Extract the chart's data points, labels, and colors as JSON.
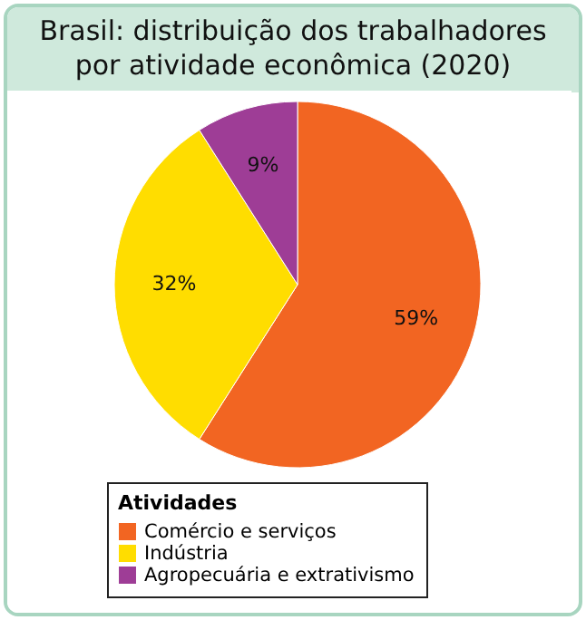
{
  "chart_data": {
    "type": "pie",
    "title": "Brasil: distribuição dos trabalhadores por atividade econômica (2020)",
    "legend_title": "Atividades",
    "legend": "bottom",
    "categories": [
      "Comércio e serviços",
      "Indústria",
      "Agropecuária e extrativismo"
    ],
    "values": [
      59,
      32,
      9
    ],
    "colors": [
      "#f26522",
      "#ffdd00",
      "#9e3d96"
    ],
    "value_labels": [
      "59%",
      "32%",
      "9%"
    ]
  }
}
